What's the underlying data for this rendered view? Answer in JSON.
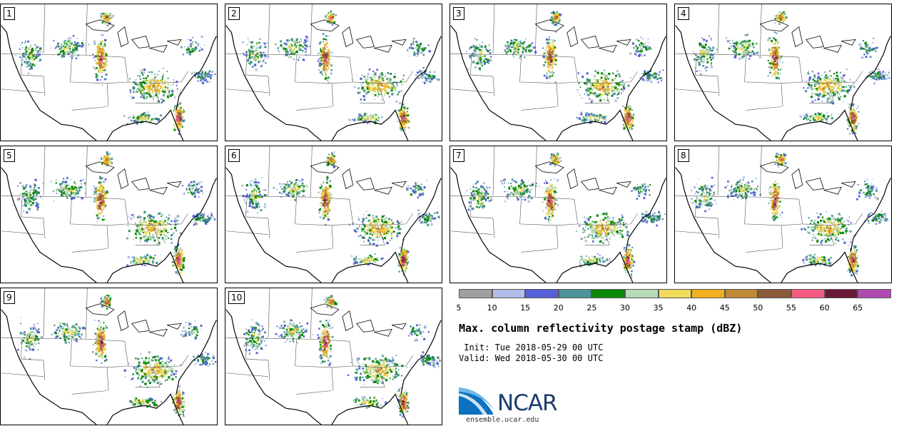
{
  "panels": [
    {
      "label": "1",
      "seed": 11
    },
    {
      "label": "2",
      "seed": 23
    },
    {
      "label": "3",
      "seed": 37
    },
    {
      "label": "4",
      "seed": 41
    },
    {
      "label": "5",
      "seed": 53
    },
    {
      "label": "6",
      "seed": 67
    },
    {
      "label": "7",
      "seed": 71
    },
    {
      "label": "8",
      "seed": 83
    },
    {
      "label": "9",
      "seed": 97
    },
    {
      "label": "10",
      "seed": 101
    }
  ],
  "colorbar": {
    "ticks": [
      "5",
      "10",
      "15",
      "20",
      "25",
      "30",
      "35",
      "40",
      "45",
      "50",
      "55",
      "60",
      "65"
    ],
    "colors": [
      "#a0a0a0",
      "#b3bde8",
      "#5560d8",
      "#4c9499",
      "#0a8a0a",
      "#b6d9b6",
      "#f0dc5a",
      "#f0b020",
      "#be8836",
      "#8a5a3a",
      "#f45a80",
      "#6a1a38",
      "#b04ab0"
    ]
  },
  "title": "Max. column reflectivity postage stamp (dBZ)",
  "init": " Init: Tue 2018-05-29 00 UTC",
  "valid": "Valid: Wed 2018-05-30 00 UTC",
  "logo": {
    "text": "NCAR",
    "site": "ensemble.ucar.edu"
  }
}
